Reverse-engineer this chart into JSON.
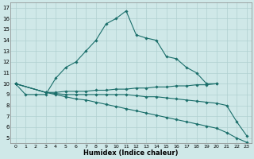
{
  "xlabel": "Humidex (Indice chaleur)",
  "xlim": [
    -0.5,
    23.5
  ],
  "ylim": [
    4.5,
    17.5
  ],
  "xticks": [
    0,
    1,
    2,
    3,
    4,
    5,
    6,
    7,
    8,
    9,
    10,
    11,
    12,
    13,
    14,
    15,
    16,
    17,
    18,
    19,
    20,
    21,
    22,
    23
  ],
  "yticks": [
    5,
    6,
    7,
    8,
    9,
    10,
    11,
    12,
    13,
    14,
    15,
    16,
    17
  ],
  "background_color": "#cfe8e8",
  "grid_color": "#b0d0d0",
  "line_color": "#1a6e6a",
  "series": [
    {
      "x": [
        0,
        1,
        2,
        3,
        4,
        5,
        6,
        7,
        8,
        9,
        10,
        11,
        12,
        13,
        14,
        15,
        16,
        17,
        18,
        19,
        20
      ],
      "y": [
        10,
        9,
        9,
        9,
        10.5,
        11.5,
        12,
        13,
        14,
        15.5,
        16,
        16.7,
        14.5,
        14.2,
        14,
        12.5,
        12.3,
        11.5,
        11,
        10,
        10
      ]
    },
    {
      "x": [
        0,
        3,
        4,
        5,
        6,
        7,
        8,
        9,
        10,
        11,
        12,
        13,
        14,
        15,
        16,
        17,
        18,
        19,
        20
      ],
      "y": [
        10,
        9.2,
        9.2,
        9.3,
        9.3,
        9.3,
        9.4,
        9.4,
        9.5,
        9.5,
        9.6,
        9.6,
        9.7,
        9.7,
        9.8,
        9.8,
        9.9,
        9.9,
        10
      ]
    },
    {
      "x": [
        0,
        3,
        4,
        5,
        6,
        7,
        8,
        9,
        10,
        11,
        12,
        13,
        14,
        15,
        16,
        17,
        18,
        19,
        20,
        21,
        22,
        23
      ],
      "y": [
        10,
        9.2,
        9.1,
        9.0,
        9.0,
        9.0,
        9.0,
        9.0,
        9.0,
        9.0,
        8.9,
        8.8,
        8.8,
        8.7,
        8.6,
        8.5,
        8.4,
        8.3,
        8.2,
        8.0,
        6.5,
        5.2
      ]
    },
    {
      "x": [
        0,
        3,
        4,
        5,
        6,
        7,
        8,
        9,
        10,
        11,
        12,
        13,
        14,
        15,
        16,
        17,
        18,
        19,
        20,
        21,
        22,
        23
      ],
      "y": [
        10,
        9.2,
        9.0,
        8.8,
        8.6,
        8.5,
        8.3,
        8.1,
        7.9,
        7.7,
        7.5,
        7.3,
        7.1,
        6.9,
        6.7,
        6.5,
        6.3,
        6.1,
        5.9,
        5.5,
        5.0,
        4.6
      ]
    }
  ]
}
